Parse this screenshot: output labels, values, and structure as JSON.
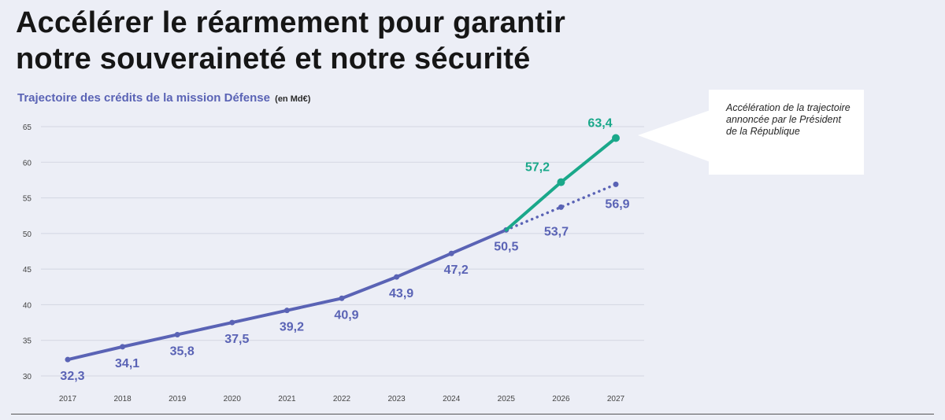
{
  "header": {
    "title_line1": "Accélérer le réarmement pour garantir",
    "title_line2": "notre souveraineté et notre sécurité",
    "subtitle": "Trajectoire des crédits de la mission Défense",
    "unit": "(en Md€)"
  },
  "callout": {
    "text": "Accélération de la trajectoire annoncée par le Président de la République"
  },
  "chart_data": {
    "type": "line",
    "title": "Trajectoire des crédits de la mission Défense",
    "unit": "(en Md€)",
    "ylim": [
      30,
      65
    ],
    "yticks": [
      30,
      35,
      40,
      45,
      50,
      55,
      60,
      65
    ],
    "grid": true,
    "categories": [
      "2017",
      "2018",
      "2019",
      "2020",
      "2021",
      "2022",
      "2023",
      "2024",
      "2025",
      "2026",
      "2027"
    ],
    "colors": {
      "base": "#5a63b5",
      "accelerated": "#1aa88a"
    },
    "series": [
      {
        "key": "base",
        "x": [
          "2017",
          "2018",
          "2019",
          "2020",
          "2021",
          "2022",
          "2023",
          "2024",
          "2025"
        ],
        "values": [
          32.3,
          34.1,
          35.8,
          37.5,
          39.2,
          40.9,
          43.9,
          47.2,
          50.5
        ],
        "labels": [
          "32,3",
          "34,1",
          "35,8",
          "37,5",
          "39,2",
          "40,9",
          "43,9",
          "47,2",
          "50,5"
        ],
        "style": "solid"
      },
      {
        "key": "previous-trajectory",
        "x": [
          "2025",
          "2026",
          "2027"
        ],
        "values": [
          50.5,
          53.7,
          56.9
        ],
        "labels": [
          "",
          "53,7",
          "56,9"
        ],
        "style": "dotted"
      },
      {
        "key": "accelerated",
        "x": [
          "2025",
          "2026",
          "2027"
        ],
        "values": [
          50.5,
          57.2,
          63.4
        ],
        "labels": [
          "",
          "57,2",
          "63,4"
        ],
        "style": "solid"
      }
    ]
  }
}
